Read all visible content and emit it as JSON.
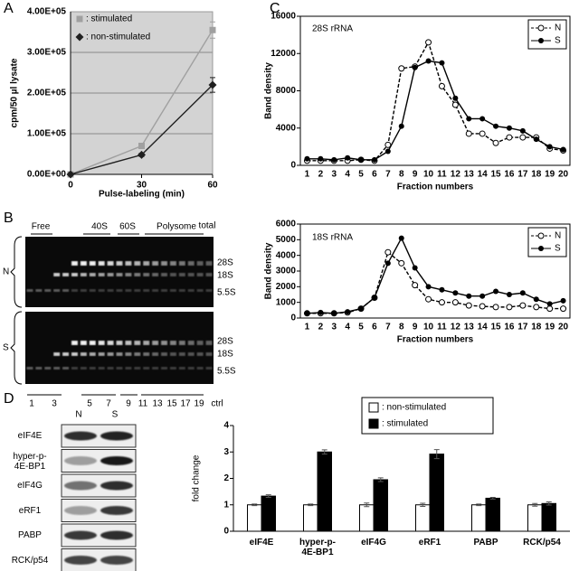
{
  "panels": [
    "A",
    "B",
    "C",
    "D"
  ],
  "chart_data": [
    {
      "type": "line",
      "xlabel": "Pulse-labeling (min)",
      "ylabel": "cpm/50 µl lysate",
      "x": [
        0,
        30,
        60
      ],
      "xlim": [
        0,
        60
      ],
      "xticks": [
        0,
        30,
        60
      ],
      "ylim": [
        0,
        400000
      ],
      "yticks": [
        {
          "value": 0,
          "label": "0.00E+00"
        },
        {
          "value": 100000,
          "label": "1.00E+05"
        },
        {
          "value": 200000,
          "label": "2.00E+05"
        },
        {
          "value": 300000,
          "label": "3.00E+05"
        },
        {
          "value": 400000,
          "label": "4.00E+05"
        }
      ],
      "grid": true,
      "background": "#d3d3d3",
      "legend": "upper left",
      "series": [
        {
          "name": ": stimulated",
          "color": "#a0a0a0",
          "marker": "square",
          "line_style": "solid",
          "values": [
            0,
            70000,
            355000
          ],
          "errors": [
            0,
            4000,
            20000
          ]
        },
        {
          "name": ": non-stimulated",
          "color": "#202020",
          "marker": "diamond",
          "line_style": "solid",
          "values": [
            0,
            48000,
            220000
          ],
          "errors": [
            0,
            4000,
            18000
          ]
        }
      ]
    },
    {
      "type": "line",
      "title": "28S rRNA",
      "xlabel": "Fraction numbers",
      "ylabel": "Band density",
      "categories": [
        "1",
        "2",
        "3",
        "4",
        "5",
        "6",
        "7",
        "8",
        "9",
        "10",
        "11",
        "12",
        "13",
        "14",
        "15",
        "16",
        "17",
        "18",
        "19",
        "20"
      ],
      "ylim": [
        0,
        16000
      ],
      "yticks": [
        0,
        4000,
        8000,
        12000,
        16000
      ],
      "grid": false,
      "legend": "upper right",
      "series": [
        {
          "name": "N",
          "color": "#000000",
          "marker": "open-circle",
          "line_style": "dashed",
          "values": [
            500,
            500,
            500,
            500,
            600,
            500,
            2200,
            10400,
            10600,
            13200,
            8500,
            6500,
            3400,
            3400,
            2400,
            3000,
            3000,
            3000,
            1800,
            1600
          ]
        },
        {
          "name": "S",
          "color": "#000000",
          "marker": "filled-circle",
          "line_style": "solid",
          "values": [
            700,
            700,
            600,
            800,
            600,
            600,
            1500,
            4200,
            10500,
            11200,
            11000,
            7200,
            5000,
            5000,
            4200,
            4000,
            3700,
            2800,
            2000,
            1700
          ]
        }
      ]
    },
    {
      "type": "line",
      "title": "18S rRNA",
      "xlabel": "Fraction numbers",
      "ylabel": "Band density",
      "categories": [
        "1",
        "2",
        "3",
        "4",
        "5",
        "6",
        "7",
        "8",
        "9",
        "10",
        "11",
        "12",
        "13",
        "14",
        "15",
        "16",
        "17",
        "18",
        "19",
        "20"
      ],
      "ylim": [
        0,
        6000
      ],
      "yticks": [
        0,
        1000,
        2000,
        3000,
        4000,
        5000,
        6000
      ],
      "grid": false,
      "legend": "upper right",
      "series": [
        {
          "name": "N",
          "color": "#000000",
          "marker": "open-circle",
          "line_style": "dashed",
          "values": [
            300,
            300,
            300,
            350,
            600,
            1300,
            4200,
            3500,
            2100,
            1200,
            1000,
            1000,
            800,
            750,
            700,
            700,
            800,
            700,
            600,
            600
          ]
        },
        {
          "name": "S",
          "color": "#000000",
          "marker": "filled-circle",
          "line_style": "solid",
          "values": [
            300,
            350,
            300,
            400,
            600,
            1300,
            3500,
            5100,
            3200,
            2000,
            1800,
            1600,
            1400,
            1400,
            1700,
            1500,
            1600,
            1200,
            900,
            1100
          ]
        }
      ]
    },
    {
      "type": "bar",
      "ylabel": "fold change",
      "categories": [
        "eIF4E",
        "hyper-p-\n4E-BP1",
        "eIF4G",
        "eRF1",
        "PABP",
        "RCK/p54"
      ],
      "ylim": [
        0,
        4
      ],
      "yticks": [
        0,
        1,
        2,
        3,
        4
      ],
      "grid": false,
      "legend": "top",
      "series": [
        {
          "name": ": non-stimulated",
          "color": "#ffffff",
          "values": [
            1,
            1,
            1,
            1,
            1,
            1
          ],
          "errors": [
            0.03,
            0.03,
            0.07,
            0.06,
            0.03,
            0.05
          ]
        },
        {
          "name": ": stimulated",
          "color": "#000000",
          "values": [
            1.33,
            3.0,
            1.95,
            2.92,
            1.25,
            1.05
          ],
          "errors": [
            0.05,
            0.08,
            0.07,
            0.17,
            0.03,
            0.06
          ]
        }
      ]
    }
  ],
  "gel": {
    "top_labels": [
      "Free",
      "40S",
      "60S",
      "Polysome",
      "total"
    ],
    "rows": [
      "N",
      "S"
    ],
    "bands": [
      "28S",
      "18S",
      "5.5S"
    ],
    "lanes": [
      "1",
      "3",
      "5",
      "7",
      "9",
      "11",
      "13",
      "15",
      "17",
      "19",
      "ctrl"
    ]
  },
  "blot": {
    "columns": [
      "N",
      "S"
    ],
    "rows": [
      "eIF4E",
      "hyper-p-\n4E-BP1",
      "eIF4G",
      "eRF1",
      "PABP",
      "RCK/p54"
    ]
  }
}
